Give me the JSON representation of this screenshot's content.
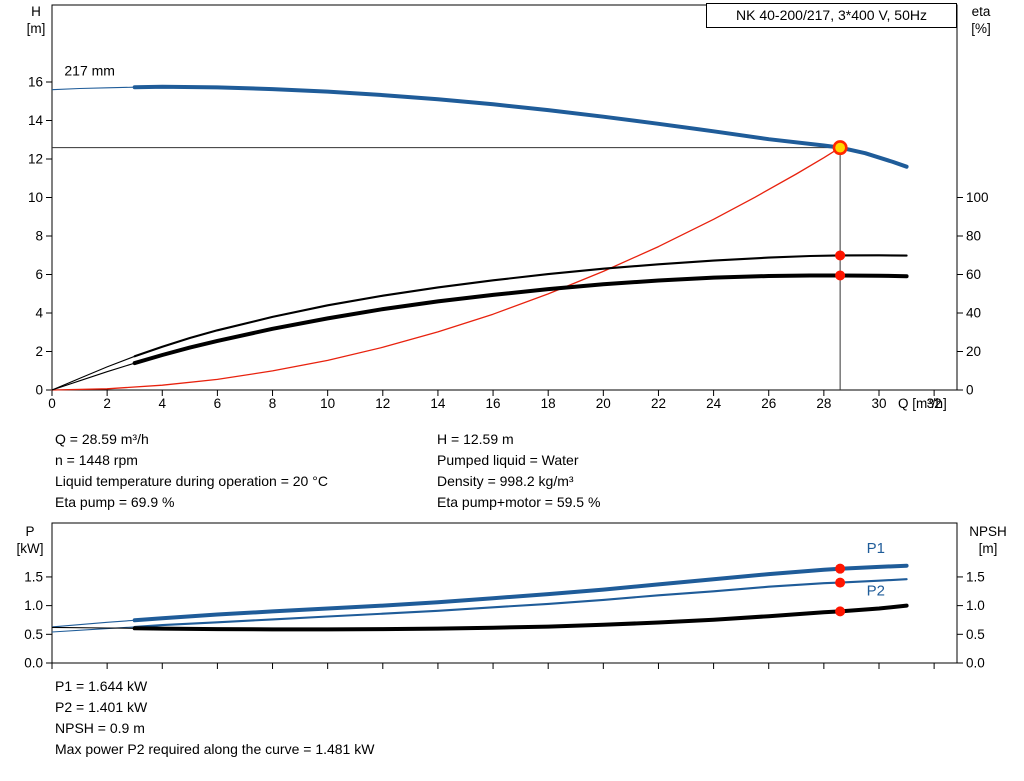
{
  "title_box": "NK 40-200/217, 3*400 V, 50Hz",
  "colors": {
    "blue": "#1f5c99",
    "red": "#e8220e",
    "black": "#000000",
    "ref": "#333333",
    "duty_fill": "#ffd800",
    "duty_ring": "#ff2600",
    "dot": "#ff1500"
  },
  "info_top": {
    "left": [
      "Q = 28.59 m³/h",
      "n = 1448 rpm",
      "Liquid temperature during operation = 20 °C",
      "Eta pump = 69.9 %"
    ],
    "right": [
      "H = 12.59 m",
      "Pumped liquid = Water",
      "Density = 998.2 kg/m³",
      "Eta pump+motor = 59.5 %"
    ]
  },
  "info_bottom": [
    "P1 = 1.644 kW",
    "P2 = 1.401 kW",
    "NPSH = 0.9 m",
    "Max power P2 required along the curve = 1.481 kW"
  ],
  "chart_data": [
    {
      "type": "line",
      "name": "performance",
      "title": "NK 40-200/217, 3*400 V, 50Hz",
      "xlabel": "Q [m³/h]",
      "ylabel_left": [
        "H",
        "[m]"
      ],
      "ylabel_right": [
        "eta",
        "[%]"
      ],
      "xlim": [
        0,
        32.83
      ],
      "ylim_left": [
        0,
        20
      ],
      "x_ticks": [
        0,
        2,
        4,
        6,
        8,
        10,
        12,
        14,
        16,
        18,
        20,
        22,
        24,
        26,
        28,
        30,
        32
      ],
      "left_ticks": [
        0,
        2,
        4,
        6,
        8,
        10,
        12,
        14,
        16
      ],
      "right_ticks": [
        0,
        20,
        40,
        60,
        80,
        100
      ],
      "right_to_left_scale": 0.1,
      "tick_decimals": 0,
      "annotation": {
        "text": "217 mm",
        "q": 0.45,
        "v": 16.6
      },
      "ref_lines": {
        "q": 28.59,
        "h": 12.59
      },
      "series": [
        {
          "name": "head",
          "axis": "left",
          "color_key": "blue",
          "weight": "thick",
          "lead_in": true,
          "points": [
            [
              0,
              15.6
            ],
            [
              1,
              15.66
            ],
            [
              2,
              15.7
            ],
            [
              3,
              15.73
            ],
            [
              4,
              15.75
            ],
            [
              6,
              15.72
            ],
            [
              8,
              15.63
            ],
            [
              10,
              15.5
            ],
            [
              12,
              15.32
            ],
            [
              14,
              15.1
            ],
            [
              16,
              14.84
            ],
            [
              18,
              14.54
            ],
            [
              20,
              14.2
            ],
            [
              22,
              13.83
            ],
            [
              24,
              13.44
            ],
            [
              26,
              13.03
            ],
            [
              28,
              12.7
            ],
            [
              28.59,
              12.59
            ],
            [
              29.5,
              12.3
            ],
            [
              30.5,
              11.85
            ],
            [
              31,
              11.6
            ]
          ]
        },
        {
          "name": "system-curve",
          "axis": "left",
          "color_key": "red",
          "weight": "thin",
          "lead_in": false,
          "points": [
            [
              0,
              0
            ],
            [
              2,
              0.06
            ],
            [
              4,
              0.25
            ],
            [
              6,
              0.55
            ],
            [
              8,
              0.99
            ],
            [
              10,
              1.54
            ],
            [
              12,
              2.22
            ],
            [
              14,
              3.02
            ],
            [
              16,
              3.94
            ],
            [
              18,
              4.99
            ],
            [
              20,
              6.16
            ],
            [
              22,
              7.45
            ],
            [
              24,
              8.87
            ],
            [
              25.5,
              10.01
            ],
            [
              27,
              11.22
            ],
            [
              28,
              12.07
            ],
            [
              28.59,
              12.59
            ]
          ]
        },
        {
          "name": "eta-pump",
          "axis": "right",
          "color_key": "black",
          "weight": "medium",
          "lead_in": true,
          "points": [
            [
              0,
              0
            ],
            [
              1,
              6
            ],
            [
              2,
              12
            ],
            [
              3,
              17.5
            ],
            [
              4,
              22.5
            ],
            [
              5,
              27
            ],
            [
              6,
              31
            ],
            [
              8,
              38
            ],
            [
              10,
              44
            ],
            [
              12,
              49
            ],
            [
              14,
              53.3
            ],
            [
              16,
              57
            ],
            [
              18,
              60.2
            ],
            [
              20,
              63
            ],
            [
              22,
              65.3
            ],
            [
              24,
              67.2
            ],
            [
              26,
              68.8
            ],
            [
              27.5,
              69.6
            ],
            [
              28.59,
              69.9
            ],
            [
              30,
              70
            ],
            [
              31,
              69.8
            ]
          ]
        },
        {
          "name": "eta-pump-motor",
          "axis": "right",
          "color_key": "black",
          "weight": "thick",
          "lead_in": true,
          "points": [
            [
              0,
              0
            ],
            [
              1,
              4.8
            ],
            [
              2,
              9.5
            ],
            [
              3,
              14
            ],
            [
              4,
              18.2
            ],
            [
              5,
              22
            ],
            [
              6,
              25.5
            ],
            [
              8,
              31.8
            ],
            [
              10,
              37.2
            ],
            [
              12,
              42
            ],
            [
              14,
              46
            ],
            [
              16,
              49.4
            ],
            [
              18,
              52.4
            ],
            [
              20,
              54.9
            ],
            [
              22,
              56.9
            ],
            [
              24,
              58.4
            ],
            [
              26,
              59.2
            ],
            [
              27.5,
              59.5
            ],
            [
              28.59,
              59.5
            ],
            [
              30,
              59.4
            ],
            [
              31,
              59.1
            ]
          ]
        }
      ],
      "markers": [
        {
          "style": "duty",
          "q": 28.59,
          "v": 12.59,
          "axis": "left"
        },
        {
          "style": "dot",
          "q": 28.59,
          "v": 69.9,
          "axis": "right"
        },
        {
          "style": "dot",
          "q": 28.59,
          "v": 59.5,
          "axis": "right"
        }
      ]
    },
    {
      "type": "line",
      "name": "power-npsh",
      "xlabel": "",
      "ylabel_left": [
        "P",
        "[kW]"
      ],
      "ylabel_right": [
        "NPSH",
        "[m]"
      ],
      "xlim": [
        0,
        32.83
      ],
      "ylim_left": [
        0,
        2.44
      ],
      "x_ticks": [
        0,
        2,
        4,
        6,
        8,
        10,
        12,
        14,
        16,
        18,
        20,
        22,
        24,
        26,
        28,
        30,
        32
      ],
      "left_ticks": [
        0,
        0.5,
        1,
        1.5
      ],
      "right_ticks": [
        0,
        0.5,
        1,
        1.5
      ],
      "right_to_left_scale": 1,
      "tick_decimals": 1,
      "labels": [
        {
          "text": "P1",
          "q": 29.55,
          "v": 2.0,
          "color_key": "blue"
        },
        {
          "text": "P2",
          "q": 29.55,
          "v": 1.26,
          "color_key": "blue"
        }
      ],
      "series": [
        {
          "name": "p1",
          "axis": "left",
          "color_key": "blue",
          "weight": "thick",
          "lead_in": true,
          "points": [
            [
              0,
              0.63
            ],
            [
              2,
              0.71
            ],
            [
              3,
              0.745
            ],
            [
              4,
              0.78
            ],
            [
              6,
              0.845
            ],
            [
              8,
              0.9
            ],
            [
              10,
              0.95
            ],
            [
              12,
              1.0
            ],
            [
              14,
              1.06
            ],
            [
              16,
              1.13
            ],
            [
              18,
              1.2
            ],
            [
              20,
              1.28
            ],
            [
              22,
              1.37
            ],
            [
              24,
              1.46
            ],
            [
              26,
              1.55
            ],
            [
              28,
              1.625
            ],
            [
              28.59,
              1.644
            ],
            [
              30,
              1.675
            ],
            [
              31,
              1.695
            ]
          ]
        },
        {
          "name": "p2",
          "axis": "left",
          "color_key": "blue",
          "weight": "medium",
          "lead_in": true,
          "points": [
            [
              0,
              0.54
            ],
            [
              2,
              0.6
            ],
            [
              3,
              0.63
            ],
            [
              4,
              0.66
            ],
            [
              6,
              0.71
            ],
            [
              8,
              0.76
            ],
            [
              10,
              0.81
            ],
            [
              12,
              0.86
            ],
            [
              14,
              0.91
            ],
            [
              16,
              0.97
            ],
            [
              18,
              1.03
            ],
            [
              20,
              1.1
            ],
            [
              22,
              1.18
            ],
            [
              24,
              1.25
            ],
            [
              26,
              1.33
            ],
            [
              28,
              1.39
            ],
            [
              28.59,
              1.401
            ],
            [
              30,
              1.435
            ],
            [
              31,
              1.46
            ]
          ]
        },
        {
          "name": "npsh",
          "axis": "right",
          "color_key": "black",
          "weight": "thick",
          "lead_in": true,
          "points": [
            [
              0,
              0.62
            ],
            [
              2,
              0.61
            ],
            [
              3,
              0.605
            ],
            [
              4,
              0.6
            ],
            [
              6,
              0.59
            ],
            [
              8,
              0.585
            ],
            [
              10,
              0.585
            ],
            [
              12,
              0.59
            ],
            [
              14,
              0.6
            ],
            [
              16,
              0.615
            ],
            [
              18,
              0.635
            ],
            [
              20,
              0.665
            ],
            [
              22,
              0.705
            ],
            [
              24,
              0.755
            ],
            [
              26,
              0.815
            ],
            [
              28,
              0.885
            ],
            [
              28.59,
              0.9
            ],
            [
              30,
              0.95
            ],
            [
              31,
              1.0
            ]
          ]
        }
      ],
      "markers": [
        {
          "style": "dot",
          "q": 28.59,
          "v": 1.644,
          "axis": "left"
        },
        {
          "style": "dot",
          "q": 28.59,
          "v": 1.401,
          "axis": "left"
        },
        {
          "style": "dot",
          "q": 28.59,
          "v": 0.9,
          "axis": "right"
        }
      ]
    }
  ]
}
